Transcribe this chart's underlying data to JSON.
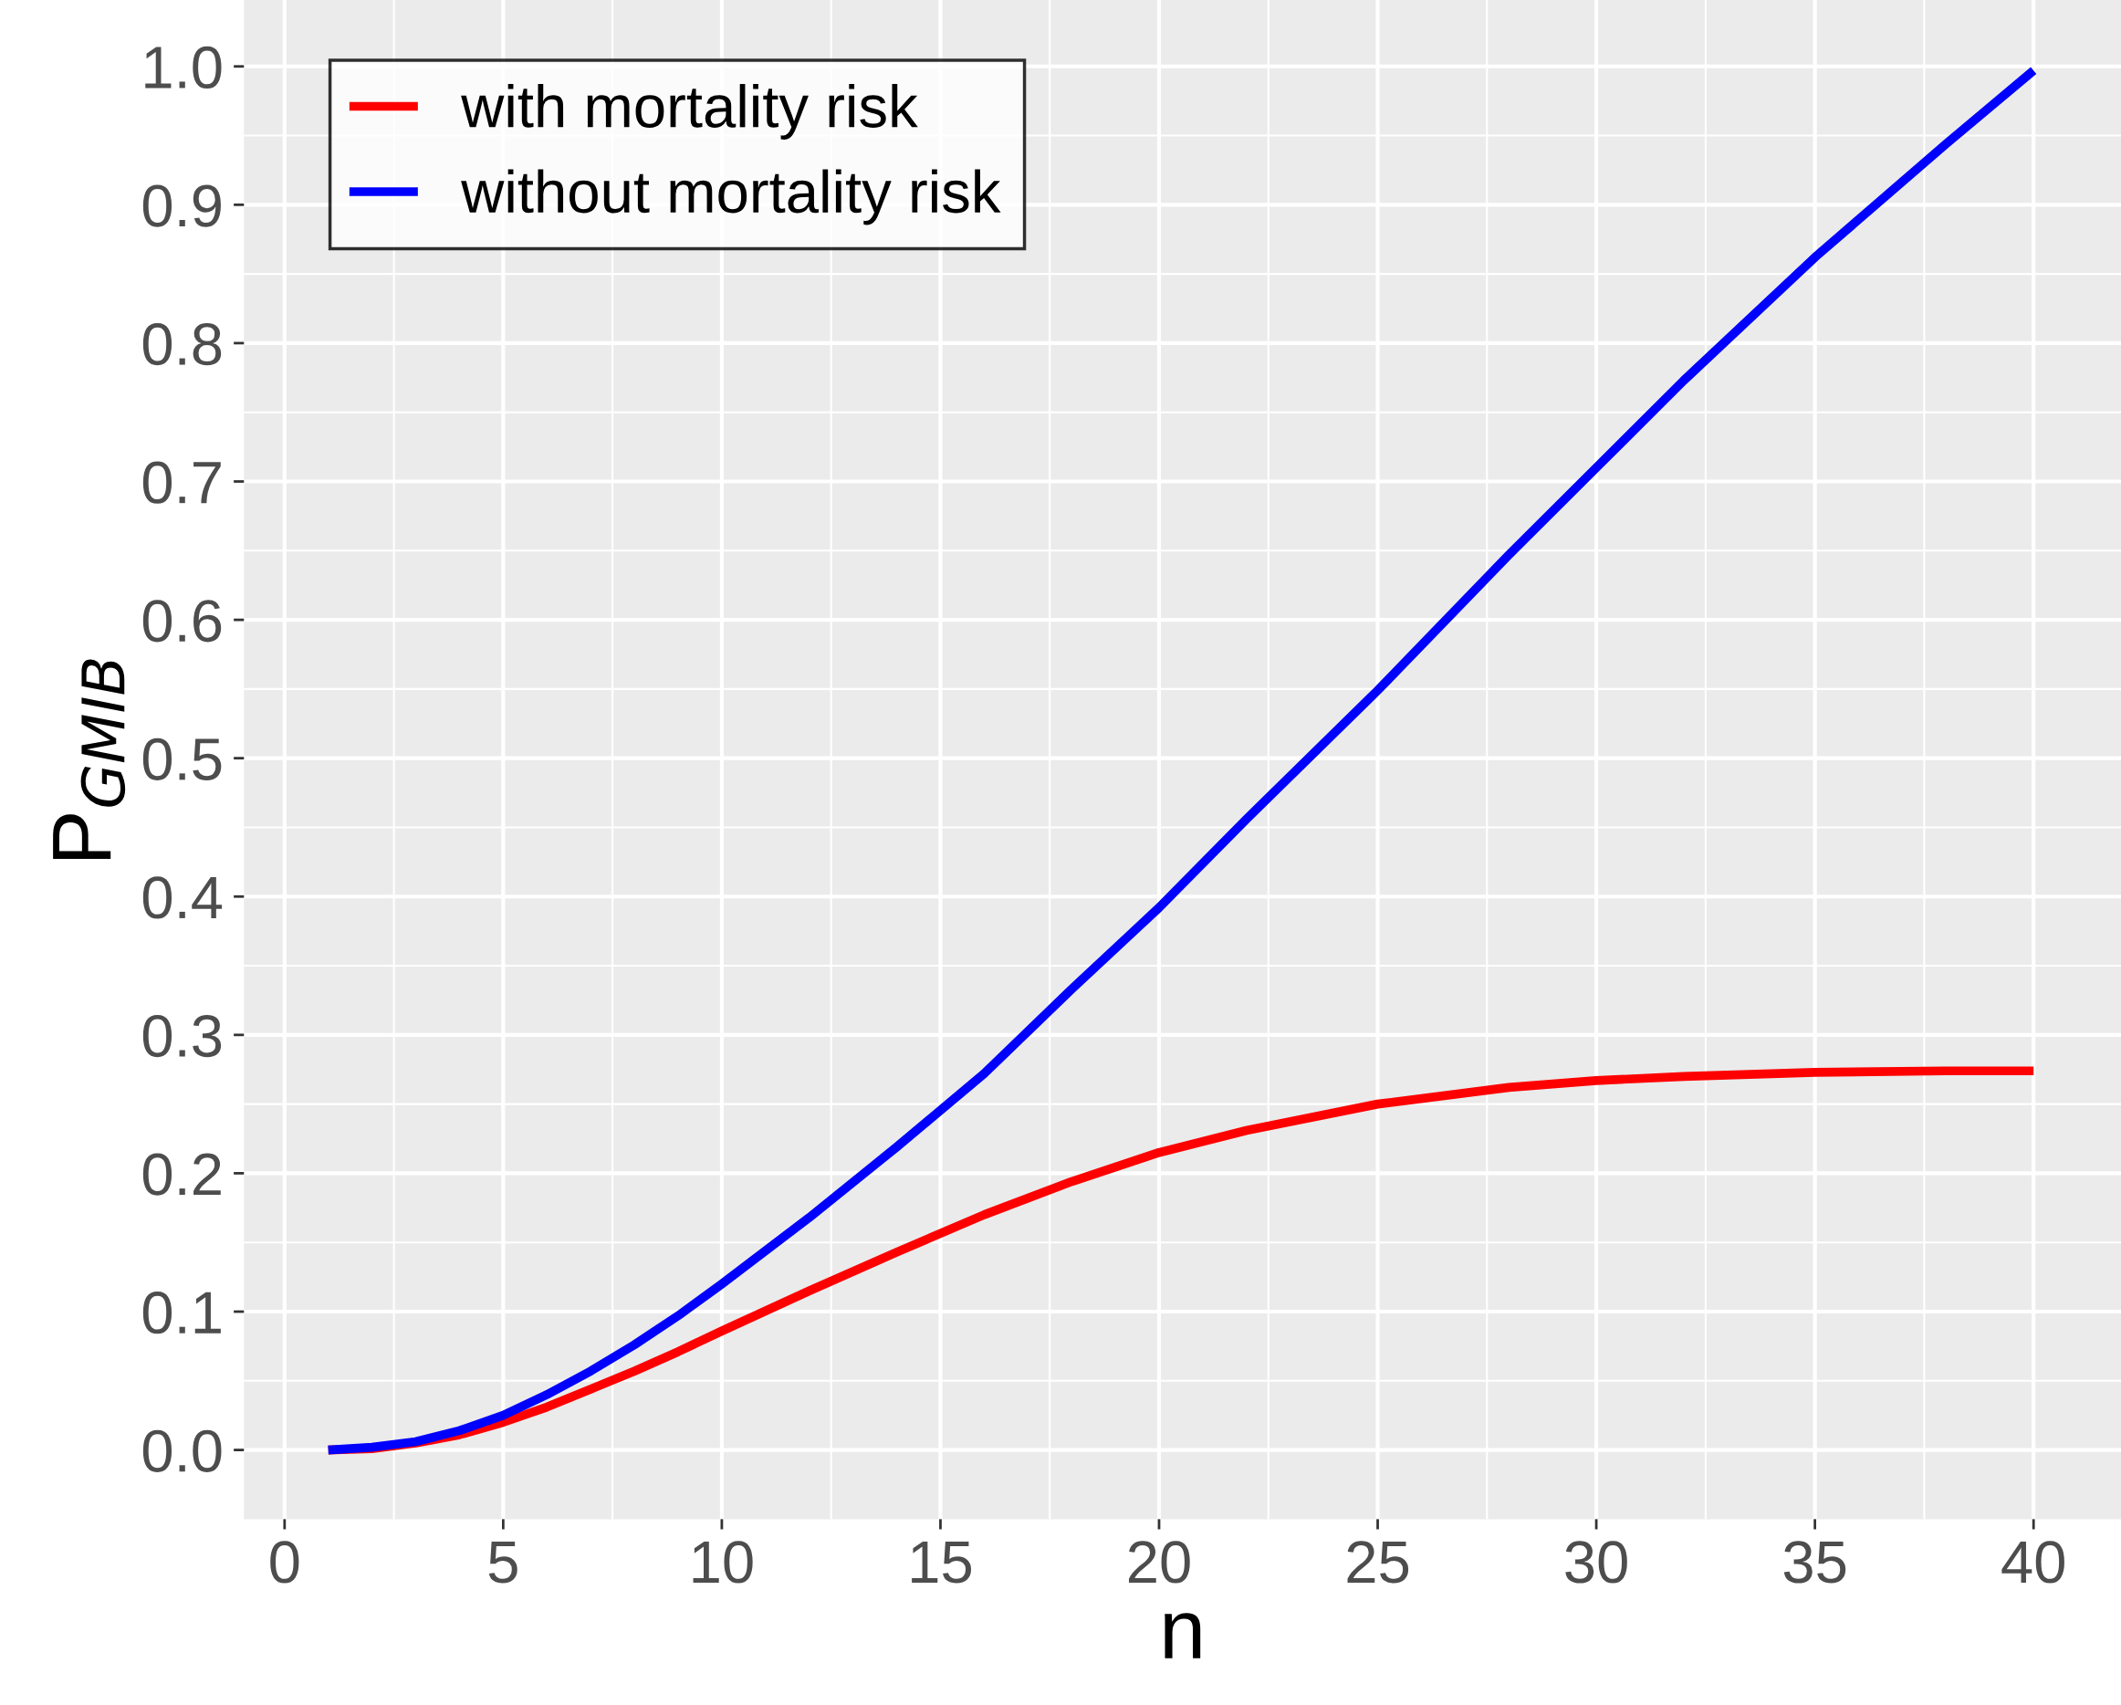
{
  "chart_data": {
    "type": "line",
    "xlabel": "n",
    "ylabel": "P$_{GMIB}$",
    "x": [
      1,
      2,
      3,
      4,
      5,
      6,
      7,
      8,
      9,
      10,
      12,
      14,
      16,
      18,
      20,
      22,
      25,
      28,
      30,
      32,
      35,
      38,
      40
    ],
    "series": [
      {
        "name": "with mortality risk",
        "color": "#ff0000",
        "values": [
          0.0,
          0.001,
          0.005,
          0.011,
          0.02,
          0.031,
          0.044,
          0.057,
          0.071,
          0.086,
          0.115,
          0.143,
          0.17,
          0.194,
          0.215,
          0.231,
          0.25,
          0.262,
          0.267,
          0.27,
          0.273,
          0.274,
          0.274
        ]
      },
      {
        "name": "without mortality risk",
        "color": "#0000ff",
        "values": [
          0.0,
          0.002,
          0.006,
          0.014,
          0.025,
          0.04,
          0.057,
          0.076,
          0.097,
          0.12,
          0.168,
          0.219,
          0.272,
          0.333,
          0.392,
          0.456,
          0.549,
          0.647,
          0.71,
          0.773,
          0.862,
          0.944,
          0.997
        ]
      }
    ],
    "xlim": [
      -0.93,
      42.0
    ],
    "ylim": [
      -0.05,
      1.048
    ],
    "xticks": [
      0,
      5,
      10,
      15,
      20,
      25,
      30,
      35,
      40
    ],
    "yticks": [
      {
        "value": 0,
        "label": "0.0"
      },
      {
        "value": 0.1,
        "label": "0.1"
      },
      {
        "value": 0.2,
        "label": "0.2"
      },
      {
        "value": 0.3,
        "label": "0.3"
      },
      {
        "value": 0.4,
        "label": "0.4"
      },
      {
        "value": 0.5,
        "label": "0.5"
      },
      {
        "value": 0.6,
        "label": "0.6"
      },
      {
        "value": 0.7,
        "label": "0.7"
      },
      {
        "value": 0.8,
        "label": "0.8"
      },
      {
        "value": 0.9,
        "label": "0.9"
      },
      {
        "value": 1.0,
        "label": "1.0"
      }
    ],
    "grid": true,
    "legend": "top left",
    "line_style": "solid",
    "marker": "none"
  }
}
